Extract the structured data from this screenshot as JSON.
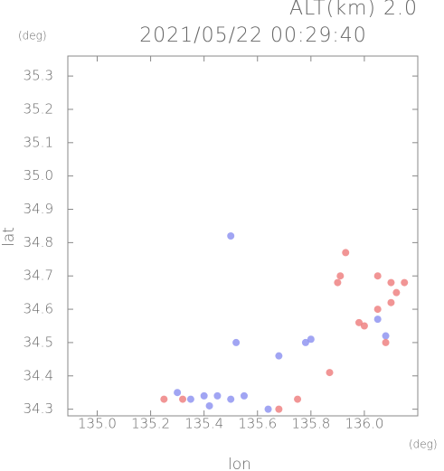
{
  "alt_label": "ALT(km) 2.0",
  "chart_data": {
    "type": "scatter",
    "title": "2021/05/22 00:29:40",
    "y_unit": "(deg)",
    "x_unit": "(deg)",
    "x_label": "lon",
    "y_label": "lat",
    "xlim": [
      134.89,
      136.2
    ],
    "ylim": [
      34.28,
      35.36
    ],
    "xticks": [
      {
        "value": 135.0,
        "label": "135.0"
      },
      {
        "value": 135.2,
        "label": "135.2"
      },
      {
        "value": 135.4,
        "label": "135.4"
      },
      {
        "value": 135.6,
        "label": "135.6"
      },
      {
        "value": 135.8,
        "label": "135.8"
      },
      {
        "value": 136.0,
        "label": "136.0"
      }
    ],
    "yticks": [
      {
        "value": 34.3,
        "label": "34.3"
      },
      {
        "value": 34.4,
        "label": "34.4"
      },
      {
        "value": 34.5,
        "label": "34.5"
      },
      {
        "value": 34.6,
        "label": "34.6"
      },
      {
        "value": 34.7,
        "label": "34.7"
      },
      {
        "value": 34.8,
        "label": "34.8"
      },
      {
        "value": 34.9,
        "label": "34.9"
      },
      {
        "value": 35.0,
        "label": "35.0"
      },
      {
        "value": 35.1,
        "label": "35.1"
      },
      {
        "value": 35.2,
        "label": "35.2"
      },
      {
        "value": 35.3,
        "label": "35.3"
      }
    ],
    "series": [
      {
        "color": "#8a8ef0",
        "x": [
          135.5,
          135.52,
          135.3,
          135.35,
          135.4,
          135.42,
          135.45,
          135.5,
          135.55,
          135.64,
          135.68,
          135.8,
          135.78,
          136.05,
          136.08
        ],
        "values": [
          34.82,
          34.5,
          34.35,
          34.33,
          34.34,
          34.31,
          34.34,
          34.33,
          34.34,
          34.3,
          34.46,
          34.51,
          34.5,
          34.57,
          34.52
        ]
      },
      {
        "color": "#ee7a7a",
        "x": [
          135.25,
          135.32,
          135.68,
          135.75,
          135.87,
          135.93,
          135.91,
          135.9,
          136.05,
          136.1,
          136.12,
          136.1,
          136.05,
          136.0,
          136.08,
          136.15,
          135.98
        ],
        "values": [
          34.33,
          34.33,
          34.3,
          34.33,
          34.41,
          34.77,
          34.7,
          34.68,
          34.7,
          34.68,
          34.65,
          34.62,
          34.6,
          34.55,
          34.5,
          34.68,
          34.56
        ]
      }
    ]
  }
}
